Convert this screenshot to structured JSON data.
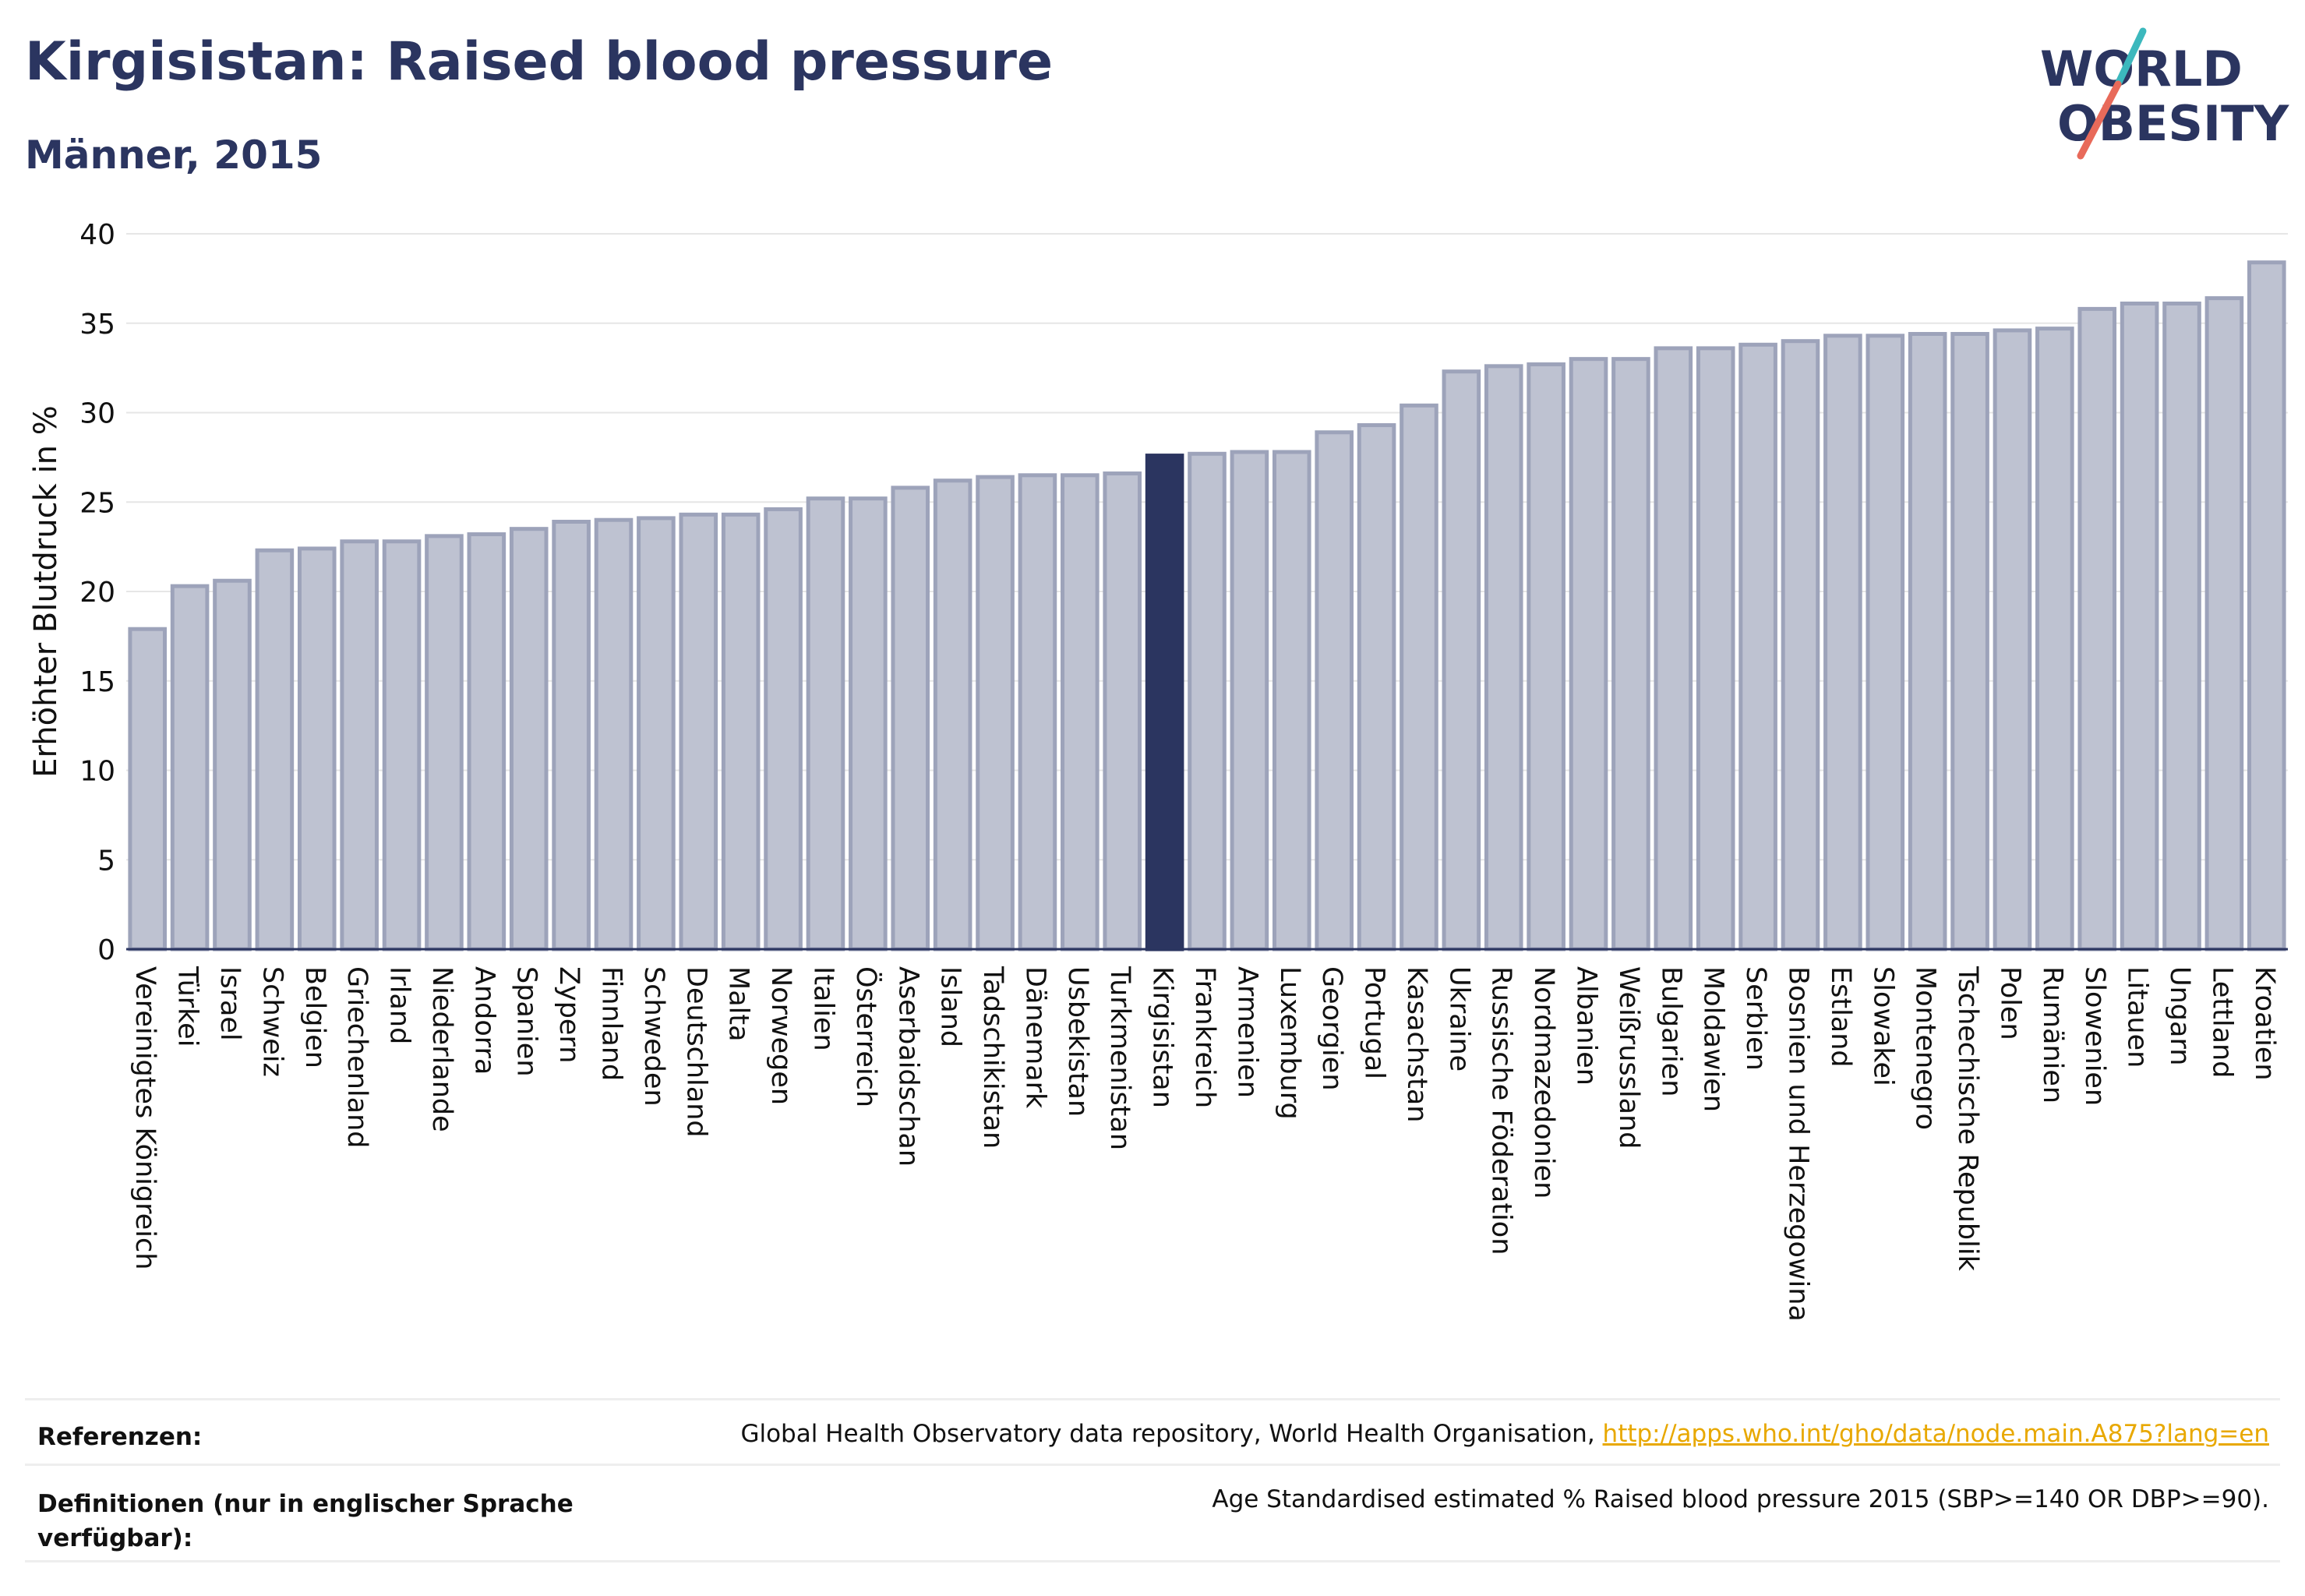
{
  "header": {
    "title": "Kirgisistan: Raised blood pressure",
    "subtitle": "Männer, 2015"
  },
  "logo": {
    "line1": "WORLD",
    "line2": "OBESITY"
  },
  "colors": {
    "bar": "#bec2d1",
    "bar_stroke": "#9da3ba",
    "highlight": "#2b3560",
    "text": "#2b3560"
  },
  "chart_data": {
    "type": "bar",
    "ylabel": "Erhöhter Blutdruck in %",
    "ylim": [
      0,
      40
    ],
    "yticks": [
      0,
      5,
      10,
      15,
      20,
      25,
      30,
      35,
      40
    ],
    "grid": true,
    "highlight": "Kirgisistan",
    "categories": [
      "Vereinigtes Königreich",
      "Türkei",
      "Israel",
      "Schweiz",
      "Belgien",
      "Griechenland",
      "Irland",
      "Niederlande",
      "Andorra",
      "Spanien",
      "Zypern",
      "Finnland",
      "Schweden",
      "Deutschland",
      "Malta",
      "Norwegen",
      "Italien",
      "Österreich",
      "Aserbaidschan",
      "Island",
      "Tadschikistan",
      "Dänemark",
      "Usbekistan",
      "Turkmenistan",
      "Kirgisistan",
      "Frankreich",
      "Armenien",
      "Luxemburg",
      "Georgien",
      "Portugal",
      "Kasachstan",
      "Ukraine",
      "Russische Föderation",
      "Nordmazedonien",
      "Albanien",
      "Weißrussland",
      "Bulgarien",
      "Moldawien",
      "Serbien",
      "Bosnien und Herzegowina",
      "Estland",
      "Slowakei",
      "Montenegro",
      "Tschechische Republik",
      "Polen",
      "Rumänien",
      "Slowenien",
      "Litauen",
      "Ungarn",
      "Lettland",
      "Kroatien"
    ],
    "values": [
      17.9,
      20.3,
      20.6,
      22.3,
      22.4,
      22.8,
      22.8,
      23.1,
      23.2,
      23.5,
      23.9,
      24.0,
      24.1,
      24.3,
      24.3,
      24.6,
      25.2,
      25.2,
      25.8,
      26.2,
      26.4,
      26.5,
      26.5,
      26.6,
      27.6,
      27.7,
      27.8,
      27.8,
      28.9,
      29.3,
      30.4,
      32.3,
      32.6,
      32.7,
      33.0,
      33.0,
      33.6,
      33.6,
      33.8,
      34.0,
      34.3,
      34.3,
      34.4,
      34.4,
      34.6,
      34.7,
      35.8,
      36.1,
      36.1,
      36.4,
      38.4
    ]
  },
  "footer": {
    "ref_label": "Referenzen:",
    "ref_text": "Global Health Observatory data repository, World Health Organisation, ",
    "ref_link": "http://apps.who.int/gho/data/node.main.A875?lang=en",
    "def_label": "Definitionen (nur in englischer Sprache verfügbar):",
    "def_text": "Age Standardised estimated % Raised blood pressure 2015 (SBP>=140 OR DBP>=90)."
  }
}
